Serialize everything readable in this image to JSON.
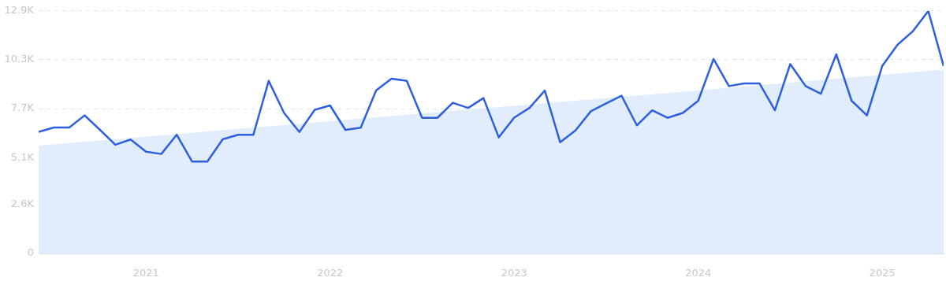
{
  "chart_data": {
    "type": "line",
    "x": [
      "2020-06",
      "2020-07",
      "2020-08",
      "2020-09",
      "2020-10",
      "2020-11",
      "2020-12",
      "2021-01",
      "2021-02",
      "2021-03",
      "2021-04",
      "2021-05",
      "2021-06",
      "2021-07",
      "2021-08",
      "2021-09",
      "2021-10",
      "2021-11",
      "2021-12",
      "2022-01",
      "2022-02",
      "2022-03",
      "2022-04",
      "2022-05",
      "2022-06",
      "2022-07",
      "2022-08",
      "2022-09",
      "2022-10",
      "2022-11",
      "2022-12",
      "2023-01",
      "2023-02",
      "2023-03",
      "2023-04",
      "2023-05",
      "2023-06",
      "2023-07",
      "2023-08",
      "2023-09",
      "2023-10",
      "2023-11",
      "2023-12",
      "2024-01",
      "2024-02",
      "2024-03",
      "2024-04",
      "2024-05",
      "2024-06",
      "2024-07",
      "2024-08",
      "2024-09",
      "2024-10",
      "2024-11",
      "2024-12",
      "2025-01",
      "2025-02",
      "2025-03",
      "2025-04",
      "2025-05"
    ],
    "series": [
      {
        "type": "area",
        "color": "#e1edfc",
        "x": [
          "2020-06",
          "2025-05"
        ],
        "values": [
          5.73,
          9.77
        ]
      },
      {
        "color": "#2d5fe0",
        "values": [
          6.46,
          6.7,
          6.7,
          7.34,
          6.57,
          5.78,
          6.06,
          5.41,
          5.29,
          6.31,
          4.89,
          4.89,
          6.07,
          6.31,
          6.31,
          9.18,
          7.47,
          6.46,
          7.64,
          7.87,
          6.57,
          6.69,
          8.66,
          9.29,
          9.18,
          7.21,
          7.21,
          8.01,
          7.74,
          8.26,
          6.17,
          7.22,
          7.74,
          8.66,
          5.91,
          6.54,
          7.56,
          7.98,
          8.39,
          6.81,
          7.61,
          7.21,
          7.47,
          8.12,
          10.34,
          8.9,
          9.04,
          9.04,
          7.61,
          10.07,
          8.9,
          8.49,
          10.59,
          8.12,
          7.34,
          9.97,
          11.1,
          11.82,
          12.89,
          9.97
        ]
      }
    ],
    "xlim": [
      "2020-06",
      "2025-05"
    ],
    "xticks": [
      {
        "value": "2021-01",
        "label": "2021"
      },
      {
        "value": "2022-01",
        "label": "2022"
      },
      {
        "value": "2023-01",
        "label": "2023"
      },
      {
        "value": "2024-01",
        "label": "2024"
      },
      {
        "value": "2025-01",
        "label": "2025"
      }
    ],
    "ylim": [
      0,
      12.9
    ],
    "yticks": [
      {
        "value": 0,
        "label": "0"
      },
      {
        "value": 2.6,
        "label": "2.6K"
      },
      {
        "value": 5.1,
        "label": "5.1K"
      },
      {
        "value": 7.7,
        "label": "7.7K"
      },
      {
        "value": 10.3,
        "label": "10.3K"
      },
      {
        "value": 12.9,
        "label": "12.9K"
      }
    ],
    "grid": "y",
    "legend": false,
    "marker": "none",
    "line_style": "solid"
  }
}
